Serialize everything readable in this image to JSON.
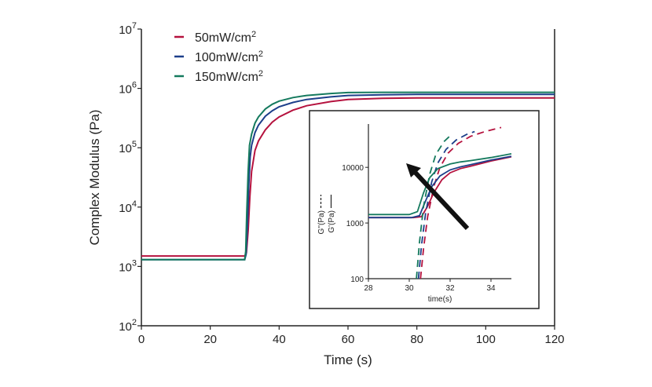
{
  "chart_data": {
    "type": "line",
    "xlabel": "Time (s)",
    "ylabel": "Complex Modulus (Pa)",
    "yscale": "log",
    "xlim": [
      0,
      120
    ],
    "ylim": [
      100,
      10000000
    ],
    "x_ticks": [
      "0",
      "20",
      "40",
      "60",
      "80",
      "100",
      "120"
    ],
    "y_ticks": [
      {
        "base": "10",
        "exp": "2",
        "value": 100
      },
      {
        "base": "10",
        "exp": "3",
        "value": 1000
      },
      {
        "base": "10",
        "exp": "4",
        "value": 10000
      },
      {
        "base": "10",
        "exp": "5",
        "value": 100000
      },
      {
        "base": "10",
        "exp": "6",
        "value": 1000000
      },
      {
        "base": "10",
        "exp": "7",
        "value": 10000000
      }
    ],
    "legend_position": "top-left",
    "grid": false,
    "series": [
      {
        "name": "50mW/cm",
        "name_sup": "2",
        "color": "#b5123e",
        "x": [
          0,
          30,
          30.5,
          31,
          31.5,
          32,
          33,
          34,
          36,
          38,
          40,
          44,
          48,
          55,
          60,
          70,
          80,
          100,
          120
        ],
        "y": [
          1500,
          1500,
          1700,
          4000,
          15000,
          40000,
          90000,
          130000,
          200000,
          270000,
          330000,
          430000,
          510000,
          600000,
          650000,
          680000,
          690000,
          690000,
          690000
        ]
      },
      {
        "name": "100mW/cm",
        "name_sup": "2",
        "color": "#1d3f8a",
        "x": [
          0,
          30,
          30.4,
          30.8,
          31.2,
          31.6,
          32,
          33,
          34,
          36,
          38,
          40,
          44,
          48,
          55,
          60,
          70,
          80,
          100,
          120
        ],
        "y": [
          1300,
          1300,
          1600,
          5000,
          25000,
          70000,
          110000,
          180000,
          240000,
          340000,
          420000,
          490000,
          580000,
          650000,
          720000,
          760000,
          780000,
          790000,
          790000,
          790000
        ]
      },
      {
        "name": "150mW/cm",
        "name_sup": "2",
        "color": "#157a5e",
        "x": [
          0,
          30,
          30.3,
          30.6,
          31,
          31.4,
          32,
          33,
          34,
          36,
          38,
          40,
          44,
          48,
          55,
          60,
          70,
          80,
          100,
          120
        ],
        "y": [
          1300,
          1300,
          1800,
          8000,
          40000,
          110000,
          170000,
          260000,
          330000,
          450000,
          540000,
          610000,
          700000,
          760000,
          820000,
          850000,
          860000,
          860000,
          860000,
          860000
        ]
      }
    ],
    "inset": {
      "xlabel": "time(s)",
      "ylabel_solid": "G'(Pa)",
      "ylabel_dashed": "G''(Pa)",
      "yscale": "log",
      "xlim": [
        28,
        35
      ],
      "ylim": [
        100,
        60000
      ],
      "x_ticks": [
        "28",
        "30",
        "32",
        "34"
      ],
      "y_ticks": [
        {
          "label": "100",
          "value": 100
        },
        {
          "label": "1000",
          "value": 1000
        },
        {
          "label": "10000",
          "value": 10000
        }
      ],
      "annotation": "arrow pointing from lower-right to upper-left indicating increasing intensity",
      "series": [
        {
          "color": "#b5123e",
          "solid_x": [
            28,
            30.2,
            30.6,
            30.9,
            31.2,
            31.6,
            32,
            32.5,
            33,
            34,
            35
          ],
          "solid_y": [
            1250,
            1250,
            1300,
            2000,
            3500,
            6000,
            8000,
            9500,
            10500,
            13000,
            15500
          ],
          "dashed_x": [
            30.55,
            30.7,
            30.9,
            31.2,
            31.5,
            31.9,
            32.4,
            33,
            33.7,
            34.5
          ],
          "dashed_y": [
            100,
            350,
            1300,
            4500,
            10000,
            18000,
            27000,
            36000,
            44000,
            52000
          ]
        },
        {
          "color": "#1d3f8a",
          "solid_x": [
            28,
            30.1,
            30.5,
            30.8,
            31.1,
            31.5,
            32,
            32.5,
            33,
            34,
            35
          ],
          "solid_y": [
            1250,
            1250,
            1350,
            2500,
            4500,
            7000,
            9000,
            10200,
            11200,
            13500,
            15800
          ],
          "dashed_x": [
            30.45,
            30.6,
            30.8,
            31.1,
            31.4,
            31.8,
            32.3,
            32.8,
            33.2
          ],
          "dashed_y": [
            100,
            400,
            1500,
            5500,
            12000,
            21000,
            31000,
            39000,
            44000
          ]
        },
        {
          "color": "#157a5e",
          "solid_x": [
            28,
            30,
            30.4,
            30.7,
            31,
            31.4,
            32,
            32.5,
            33,
            34,
            35
          ],
          "solid_y": [
            1420,
            1420,
            1600,
            3500,
            6500,
            9500,
            11500,
            12500,
            13200,
            15000,
            17500
          ],
          "dashed_x": [
            30.35,
            30.5,
            30.7,
            31,
            31.3,
            31.7,
            32.1
          ],
          "dashed_y": [
            100,
            450,
            2000,
            7500,
            17000,
            29000,
            40000
          ]
        }
      ]
    }
  }
}
